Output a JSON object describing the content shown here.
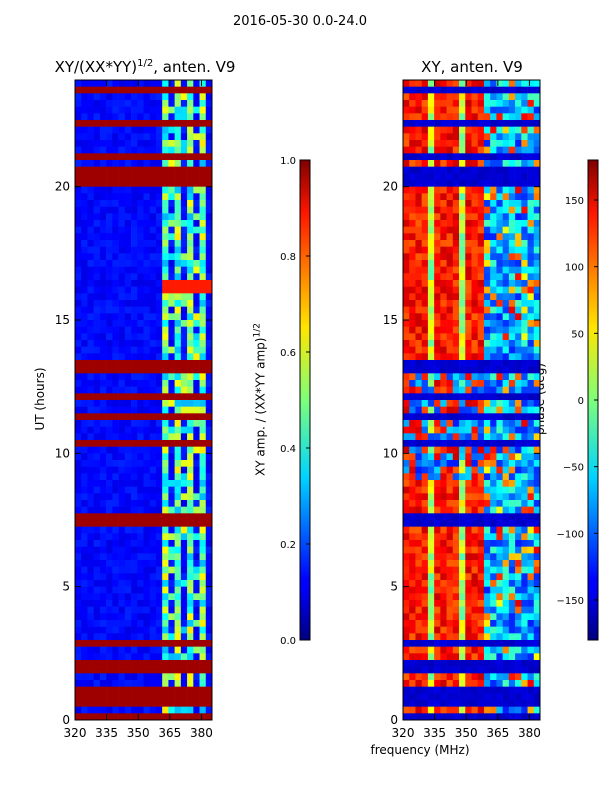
{
  "suptitle": "2016-05-30 0.0-24.0",
  "chart_data": [
    {
      "type": "heatmap",
      "title": "XY/(XX*YY)^1/2, anten. V9",
      "title_parts": {
        "main": "XY/(XX*YY)",
        "sup": "1/2",
        "suffix": ", anten. V9"
      },
      "xlabel": "",
      "ylabel": "UT (hours)",
      "xlim": [
        320,
        385
      ],
      "ylim": [
        0,
        24
      ],
      "xticks": [
        "320",
        "335",
        "350",
        "365",
        "380"
      ],
      "yticks": [
        "0",
        "5",
        "10",
        "15",
        "20"
      ],
      "colorbar": {
        "label": "XY amp. / (XX*YY amp)^1/2",
        "label_parts": {
          "main": "XY amp. / (XX*YY amp)",
          "sup": "1/2"
        },
        "range": [
          0.0,
          1.0
        ],
        "ticks": [
          "0.0",
          "0.2",
          "0.4",
          "0.6",
          "0.8",
          "1.0"
        ]
      }
    },
    {
      "type": "heatmap",
      "title": "XY, anten. V9",
      "xlabel": "frequency (MHz)",
      "ylabel": "",
      "xlim": [
        320,
        385
      ],
      "ylim": [
        0,
        24
      ],
      "xticks": [
        "320",
        "335",
        "350",
        "365",
        "380"
      ],
      "yticks": [
        "0",
        "5",
        "10",
        "15",
        "20"
      ],
      "colorbar": {
        "label": "phase (deg)",
        "range": [
          -180,
          180
        ],
        "ticks": [
          "−150",
          "−100",
          "−50",
          "0",
          "50",
          "100",
          "150"
        ]
      }
    }
  ],
  "colormap": "jet"
}
